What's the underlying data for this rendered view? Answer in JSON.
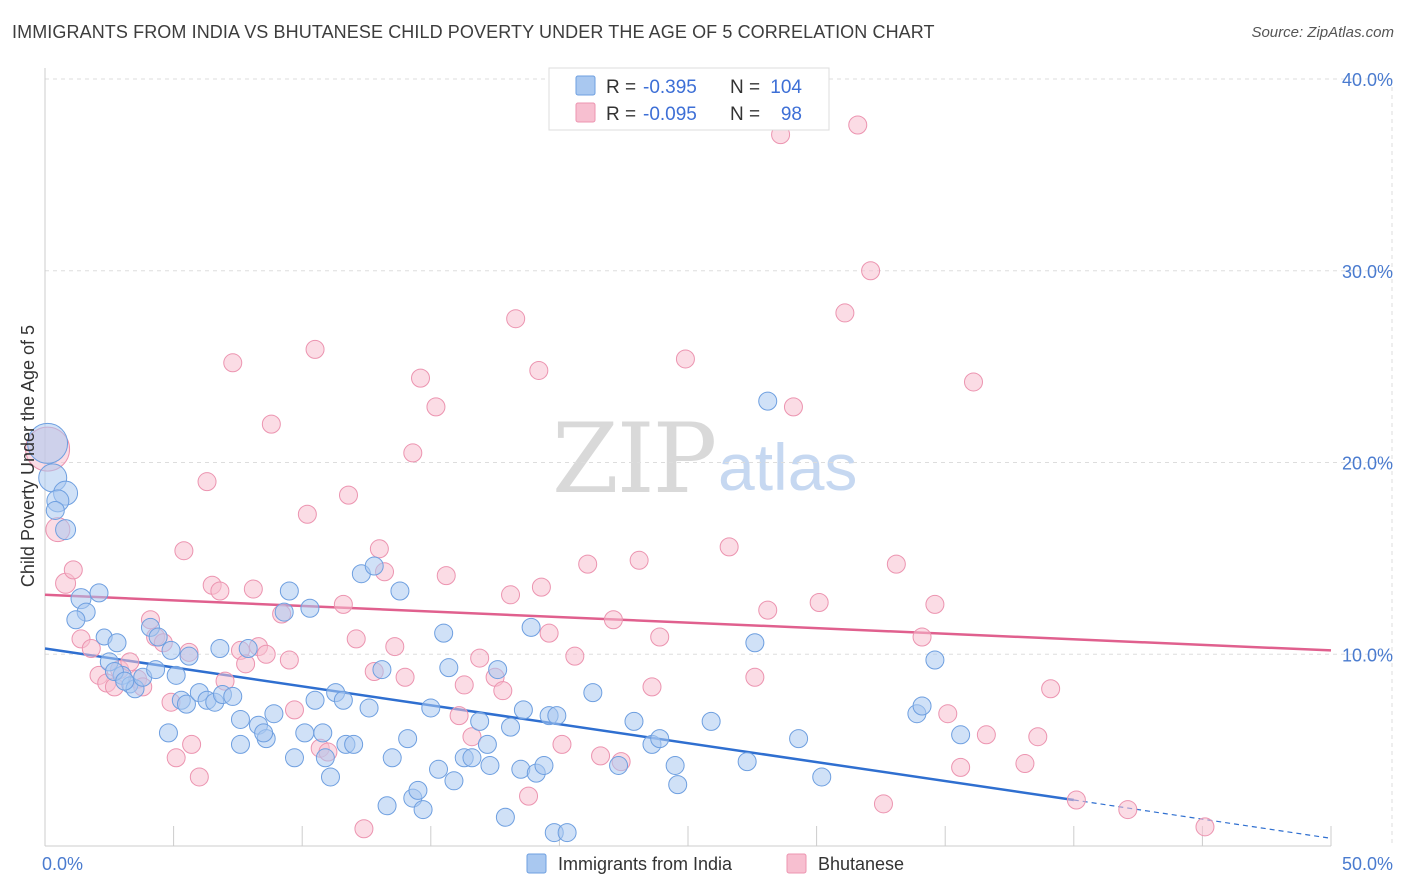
{
  "header": {
    "title": "IMMIGRANTS FROM INDIA VS BHUTANESE CHILD POVERTY UNDER THE AGE OF 5 CORRELATION CHART",
    "source": "Source: ZipAtlas.com"
  },
  "watermark": {
    "zip": "ZIP",
    "atlas": "atlas"
  },
  "legend": {
    "series": [
      {
        "r_label": "R =",
        "r_value": "-0.395",
        "n_label": "N =",
        "n_value": "104"
      },
      {
        "r_label": "R =",
        "r_value": "-0.095",
        "n_label": "N =",
        "n_value": "98"
      }
    ]
  },
  "colors": {
    "india_fill": "#a9c8f0",
    "india_stroke": "#6e9fe0",
    "india_line": "#2f6fd0",
    "bhutan_fill": "#f7bfd0",
    "bhutan_stroke": "#ec94b0",
    "bhutan_line": "#e0608e",
    "tick_text": "#4a7bcf",
    "grid": "#dddddd"
  },
  "chart_data": {
    "type": "scatter",
    "title": "IMMIGRANTS FROM INDIA VS BHUTANESE CHILD POVERTY UNDER THE AGE OF 5 CORRELATION CHART",
    "xlabel": "",
    "ylabel": "Child Poverty Under the Age of 5",
    "xlim": [
      0,
      50
    ],
    "ylim": [
      0,
      40
    ],
    "x_ticks": [
      0,
      5,
      10,
      15,
      20,
      25,
      30,
      35,
      40,
      45,
      50
    ],
    "x_tick_labels": [
      "0.0%",
      "",
      "",
      "",
      "",
      "",
      "",
      "",
      "",
      "",
      "50.0%"
    ],
    "y_ticks": [
      10,
      20,
      30,
      40
    ],
    "y_tick_labels": [
      "10.0%",
      "20.0%",
      "30.0%",
      "40.0%"
    ],
    "grid": true,
    "legend_position": "top-center",
    "series": [
      {
        "name": "Immigrants from India",
        "r": -0.395,
        "n": 104,
        "trend": {
          "x": [
            0,
            40
          ],
          "y": [
            10.3,
            2.4
          ],
          "dashed_to": [
            50,
            0.4
          ]
        },
        "points": [
          [
            0.1,
            21.0,
            20
          ],
          [
            0.3,
            19.2,
            14
          ],
          [
            0.8,
            18.4,
            12
          ],
          [
            0.5,
            18.0,
            11
          ],
          [
            0.8,
            16.5,
            10
          ],
          [
            1.4,
            12.9,
            10
          ],
          [
            1.6,
            12.2,
            9
          ],
          [
            1.2,
            11.8,
            9
          ],
          [
            2.1,
            13.2,
            9
          ],
          [
            2.3,
            10.9,
            8
          ],
          [
            2.8,
            10.6,
            9
          ],
          [
            2.5,
            9.6,
            9
          ],
          [
            3.0,
            8.9,
            9
          ],
          [
            3.3,
            8.4,
            8
          ],
          [
            3.5,
            8.2,
            9
          ],
          [
            3.8,
            8.8,
            9
          ],
          [
            4.1,
            11.4,
            9
          ],
          [
            4.4,
            10.9,
            9
          ],
          [
            4.3,
            9.2,
            9
          ],
          [
            4.9,
            10.2,
            9
          ],
          [
            5.1,
            8.9,
            9
          ],
          [
            5.3,
            7.6,
            9
          ],
          [
            5.5,
            7.4,
            9
          ],
          [
            5.6,
            9.9,
            9
          ],
          [
            4.8,
            5.9,
            9
          ],
          [
            6.0,
            8.0,
            9
          ],
          [
            6.3,
            7.6,
            9
          ],
          [
            6.6,
            7.5,
            9
          ],
          [
            6.9,
            7.9,
            9
          ],
          [
            6.8,
            10.3,
            9
          ],
          [
            7.3,
            7.8,
            9
          ],
          [
            7.6,
            6.6,
            9
          ],
          [
            7.6,
            5.3,
            9
          ],
          [
            7.9,
            10.3,
            9
          ],
          [
            8.3,
            6.3,
            9
          ],
          [
            8.6,
            5.6,
            9
          ],
          [
            8.5,
            5.9,
            9
          ],
          [
            8.9,
            6.9,
            9
          ],
          [
            9.3,
            12.2,
            9
          ],
          [
            9.5,
            13.3,
            9
          ],
          [
            9.7,
            4.6,
            9
          ],
          [
            10.1,
            5.9,
            9
          ],
          [
            10.3,
            12.4,
            9
          ],
          [
            10.5,
            7.6,
            9
          ],
          [
            10.8,
            5.9,
            9
          ],
          [
            10.9,
            4.6,
            9
          ],
          [
            11.1,
            3.6,
            9
          ],
          [
            11.3,
            8.0,
            9
          ],
          [
            11.6,
            7.6,
            9
          ],
          [
            11.7,
            5.3,
            9
          ],
          [
            12.0,
            5.3,
            9
          ],
          [
            12.3,
            14.2,
            9
          ],
          [
            12.6,
            7.2,
            9
          ],
          [
            12.8,
            14.6,
            9
          ],
          [
            13.1,
            9.2,
            9
          ],
          [
            13.3,
            2.1,
            9
          ],
          [
            13.5,
            4.6,
            9
          ],
          [
            13.8,
            13.3,
            9
          ],
          [
            14.1,
            5.6,
            9
          ],
          [
            14.3,
            2.5,
            9
          ],
          [
            14.5,
            2.9,
            9
          ],
          [
            14.7,
            1.9,
            9
          ],
          [
            15.0,
            7.2,
            9
          ],
          [
            15.3,
            4.0,
            9
          ],
          [
            15.5,
            11.1,
            9
          ],
          [
            15.7,
            9.3,
            9
          ],
          [
            15.9,
            3.4,
            9
          ],
          [
            16.3,
            4.6,
            9
          ],
          [
            16.6,
            4.6,
            9
          ],
          [
            16.9,
            6.5,
            9
          ],
          [
            17.2,
            5.3,
            9
          ],
          [
            17.3,
            4.2,
            9
          ],
          [
            17.6,
            9.2,
            9
          ],
          [
            17.9,
            1.5,
            9
          ],
          [
            18.1,
            6.2,
            9
          ],
          [
            18.5,
            4.0,
            9
          ],
          [
            18.6,
            7.1,
            9
          ],
          [
            18.9,
            11.4,
            9
          ],
          [
            19.1,
            3.8,
            9
          ],
          [
            19.4,
            4.2,
            9
          ],
          [
            19.6,
            6.8,
            9
          ],
          [
            19.9,
            6.8,
            9
          ],
          [
            19.8,
            0.7,
            9
          ],
          [
            20.3,
            0.7,
            9
          ],
          [
            21.3,
            8.0,
            9
          ],
          [
            22.3,
            4.2,
            9
          ],
          [
            22.9,
            6.5,
            9
          ],
          [
            23.6,
            5.3,
            9
          ],
          [
            23.9,
            5.6,
            9
          ],
          [
            24.6,
            3.2,
            9
          ],
          [
            24.5,
            4.2,
            9
          ],
          [
            25.9,
            6.5,
            9
          ],
          [
            27.3,
            4.4,
            9
          ],
          [
            27.6,
            10.6,
            9
          ],
          [
            28.1,
            23.2,
            9
          ],
          [
            29.3,
            5.6,
            9
          ],
          [
            30.2,
            3.6,
            9
          ],
          [
            33.9,
            6.9,
            9
          ],
          [
            34.1,
            7.3,
            9
          ],
          [
            34.6,
            9.7,
            9
          ],
          [
            35.6,
            5.8,
            9
          ],
          [
            0.4,
            17.5,
            9
          ],
          [
            2.7,
            9.1,
            9
          ],
          [
            3.1,
            8.6,
            9
          ]
        ]
      },
      {
        "name": "Bhutanese",
        "r": -0.095,
        "n": 98,
        "trend": {
          "x": [
            0,
            50
          ],
          "y": [
            13.1,
            10.2
          ]
        },
        "points": [
          [
            0.1,
            20.7,
            22
          ],
          [
            0.5,
            16.5,
            12
          ],
          [
            0.8,
            13.7,
            10
          ],
          [
            1.1,
            14.4,
            9
          ],
          [
            1.4,
            10.8,
            9
          ],
          [
            1.8,
            10.3,
            9
          ],
          [
            2.1,
            8.9,
            9
          ],
          [
            2.4,
            8.5,
            9
          ],
          [
            2.7,
            8.3,
            9
          ],
          [
            2.9,
            9.2,
            9
          ],
          [
            3.3,
            9.6,
            9
          ],
          [
            3.6,
            8.7,
            9
          ],
          [
            3.8,
            8.3,
            9
          ],
          [
            4.1,
            11.8,
            9
          ],
          [
            4.3,
            10.9,
            9
          ],
          [
            4.6,
            10.6,
            9
          ],
          [
            4.9,
            7.5,
            9
          ],
          [
            5.1,
            4.6,
            9
          ],
          [
            5.4,
            15.4,
            9
          ],
          [
            5.6,
            10.1,
            9
          ],
          [
            5.7,
            5.3,
            9
          ],
          [
            6.0,
            3.6,
            9
          ],
          [
            6.3,
            19.0,
            9
          ],
          [
            6.5,
            13.6,
            9
          ],
          [
            6.8,
            13.3,
            9
          ],
          [
            7.0,
            8.6,
            9
          ],
          [
            7.3,
            25.2,
            9
          ],
          [
            7.6,
            10.2,
            9
          ],
          [
            7.8,
            9.5,
            9
          ],
          [
            8.1,
            13.4,
            9
          ],
          [
            8.3,
            10.4,
            9
          ],
          [
            8.6,
            10.0,
            9
          ],
          [
            8.8,
            22.0,
            9
          ],
          [
            9.2,
            12.1,
            9
          ],
          [
            9.5,
            9.7,
            9
          ],
          [
            9.7,
            7.1,
            9
          ],
          [
            10.2,
            17.3,
            9
          ],
          [
            10.5,
            25.9,
            9
          ],
          [
            10.7,
            5.1,
            9
          ],
          [
            11.0,
            4.9,
            9
          ],
          [
            11.6,
            12.6,
            9
          ],
          [
            11.8,
            18.3,
            9
          ],
          [
            12.1,
            10.8,
            9
          ],
          [
            12.4,
            0.9,
            9
          ],
          [
            12.8,
            9.1,
            9
          ],
          [
            13.0,
            15.5,
            9
          ],
          [
            13.2,
            14.3,
            9
          ],
          [
            13.6,
            10.4,
            9
          ],
          [
            14.0,
            8.8,
            9
          ],
          [
            14.3,
            20.5,
            9
          ],
          [
            14.6,
            24.4,
            9
          ],
          [
            15.2,
            22.9,
            9
          ],
          [
            15.6,
            14.1,
            9
          ],
          [
            16.1,
            6.8,
            9
          ],
          [
            16.3,
            8.4,
            9
          ],
          [
            16.6,
            5.7,
            9
          ],
          [
            16.9,
            9.8,
            9
          ],
          [
            17.5,
            8.8,
            9
          ],
          [
            17.8,
            8.1,
            9
          ],
          [
            18.1,
            13.1,
            9
          ],
          [
            18.3,
            27.5,
            9
          ],
          [
            18.8,
            2.6,
            9
          ],
          [
            19.2,
            24.8,
            9
          ],
          [
            19.3,
            13.5,
            9
          ],
          [
            19.6,
            11.1,
            9
          ],
          [
            20.1,
            5.3,
            9
          ],
          [
            20.6,
            9.9,
            9
          ],
          [
            21.1,
            14.7,
            9
          ],
          [
            21.6,
            4.7,
            9
          ],
          [
            22.1,
            11.8,
            9
          ],
          [
            22.4,
            4.4,
            9
          ],
          [
            23.1,
            14.9,
            9
          ],
          [
            23.6,
            8.3,
            9
          ],
          [
            23.9,
            10.9,
            9
          ],
          [
            24.9,
            25.4,
            9
          ],
          [
            26.6,
            15.6,
            9
          ],
          [
            27.6,
            8.8,
            9
          ],
          [
            28.1,
            12.3,
            9
          ],
          [
            28.6,
            37.1,
            9
          ],
          [
            29.1,
            22.9,
            9
          ],
          [
            30.1,
            12.7,
            9
          ],
          [
            31.1,
            27.8,
            9
          ],
          [
            31.6,
            37.6,
            9
          ],
          [
            32.1,
            30.0,
            9
          ],
          [
            32.6,
            2.2,
            9
          ],
          [
            33.1,
            14.7,
            9
          ],
          [
            34.1,
            10.9,
            9
          ],
          [
            34.6,
            12.6,
            9
          ],
          [
            35.1,
            6.9,
            9
          ],
          [
            35.6,
            4.1,
            9
          ],
          [
            36.1,
            24.2,
            9
          ],
          [
            36.6,
            5.8,
            9
          ],
          [
            38.1,
            4.3,
            9
          ],
          [
            38.6,
            5.7,
            9
          ],
          [
            39.1,
            8.2,
            9
          ],
          [
            40.1,
            2.4,
            9
          ],
          [
            42.1,
            1.9,
            9
          ],
          [
            45.1,
            1.0,
            9
          ]
        ]
      }
    ]
  },
  "axes": {
    "ylabel": "Child Poverty Under the Age of 5",
    "x_min_label": "0.0%",
    "x_max_label": "50.0%"
  }
}
